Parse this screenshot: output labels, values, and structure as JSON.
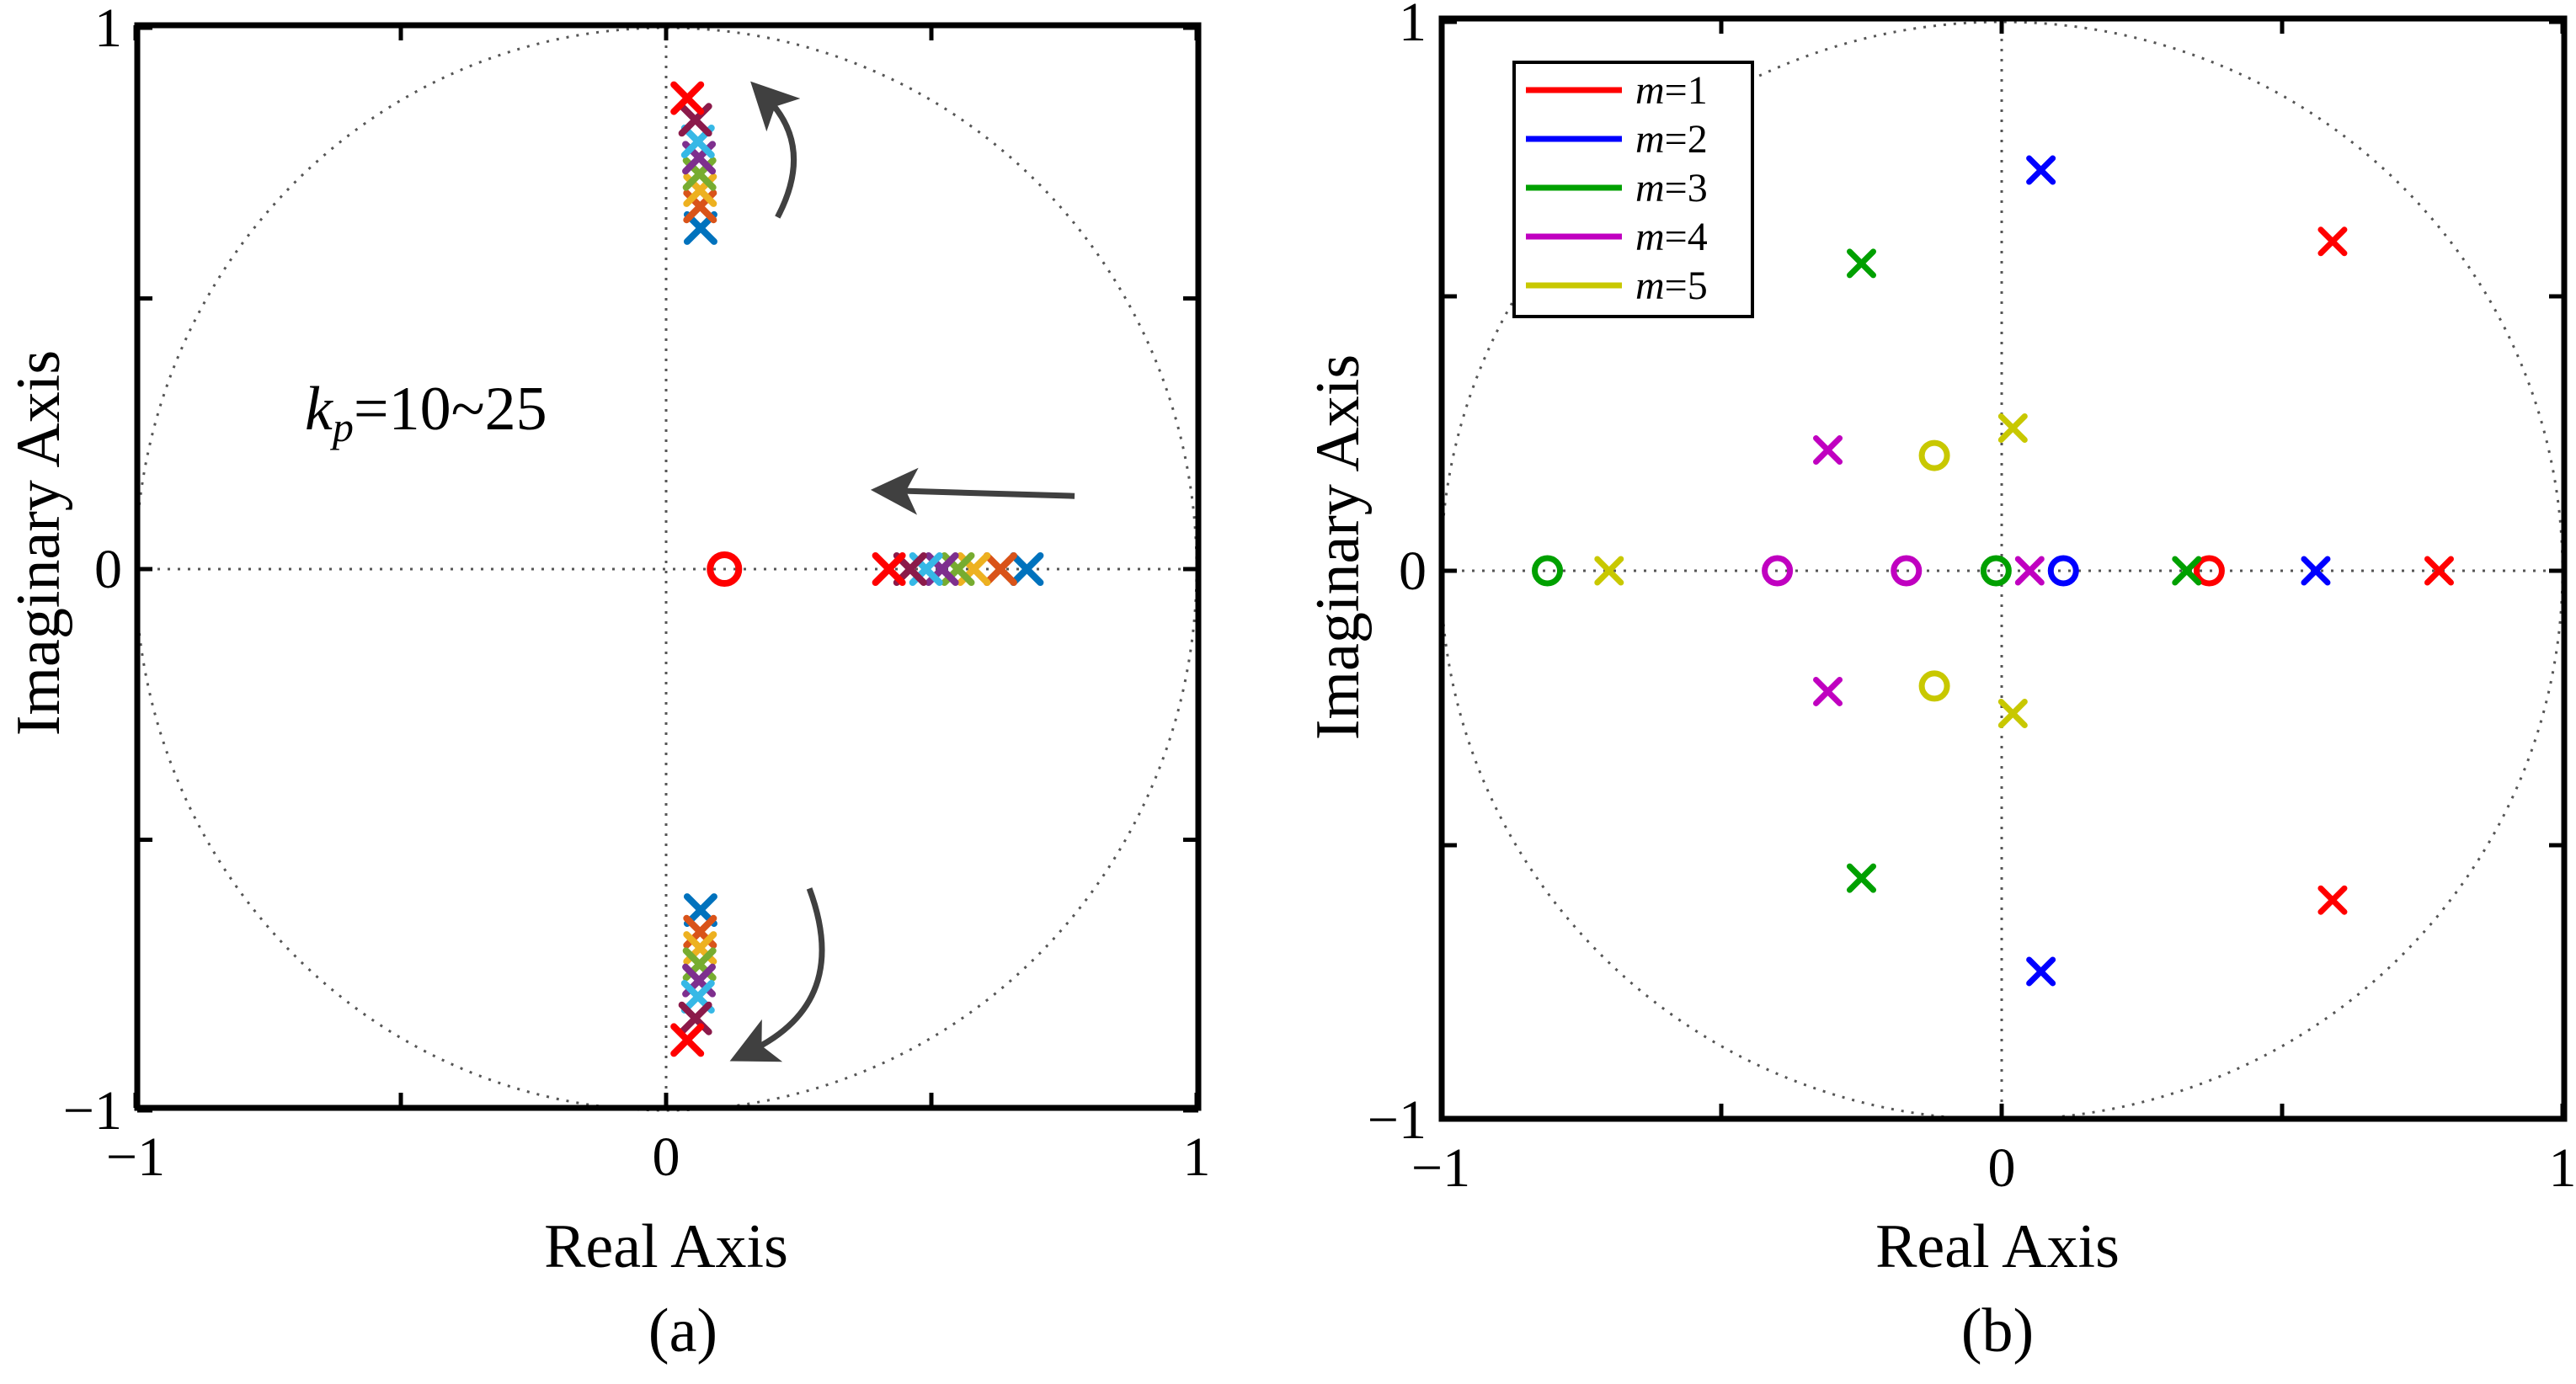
{
  "chart_data": [
    {
      "panel": "a",
      "type": "scatter",
      "caption": "(a)",
      "xlabel": "Real Axis",
      "ylabel": "Imaginary Axis",
      "xlim": [
        -1,
        1
      ],
      "ylim": [
        -1,
        1
      ],
      "xticks": [
        "−1",
        "0",
        "1"
      ],
      "yticks": [
        "−1",
        "0",
        "1"
      ],
      "unit_circle": true,
      "annotation": {
        "var": "k",
        "sub": "p",
        "rest": "=10~25"
      },
      "palette": [
        "#ff0000",
        "#8b1a4a",
        "#36b8e6",
        "#7e2f8e",
        "#77ac30",
        "#edb120",
        "#d95319",
        "#0072bd"
      ],
      "pole_sweep": {
        "real_axis_x": [
          0.42,
          0.46,
          0.49,
          0.52,
          0.55,
          0.58,
          0.63,
          0.68
        ],
        "complex_re": [
          0.04,
          0.055,
          0.06,
          0.062,
          0.063,
          0.064,
          0.064,
          0.065
        ],
        "complex_im": [
          0.87,
          0.83,
          0.79,
          0.76,
          0.73,
          0.7,
          0.67,
          0.63
        ]
      },
      "zeros": [
        {
          "re": 0.11,
          "im": 0.0,
          "color": "#ff0000"
        }
      ]
    },
    {
      "panel": "b",
      "type": "scatter",
      "caption": "(b)",
      "xlabel": "Real Axis",
      "ylabel": "Imaginary Axis",
      "xlim": [
        -1,
        1
      ],
      "ylim": [
        -1,
        1
      ],
      "xticks": [
        "−1",
        "0",
        "1"
      ],
      "yticks": [
        "−1",
        "0",
        "1"
      ],
      "unit_circle": true,
      "legend": [
        {
          "var": "m",
          "value": "=1",
          "color": "#ff0000"
        },
        {
          "var": "m",
          "value": "=2",
          "color": "#0000ff"
        },
        {
          "var": "m",
          "value": "=3",
          "color": "#00a000"
        },
        {
          "var": "m",
          "value": "=4",
          "color": "#c000c0"
        },
        {
          "var": "m",
          "value": "=5",
          "color": "#c8c800"
        }
      ],
      "series": [
        {
          "name": "m=1",
          "color": "#ff0000",
          "poles": [
            [
              0.78,
              0.0
            ],
            [
              0.59,
              0.6
            ],
            [
              0.59,
              -0.6
            ]
          ],
          "zeros": [
            [
              0.37,
              0.0
            ]
          ]
        },
        {
          "name": "m=2",
          "color": "#0000ff",
          "poles": [
            [
              0.56,
              0.0
            ],
            [
              0.07,
              0.73
            ],
            [
              0.07,
              -0.73
            ]
          ],
          "zeros": [
            [
              0.11,
              0.0
            ]
          ]
        },
        {
          "name": "m=3",
          "color": "#00a000",
          "poles": [
            [
              0.33,
              0.0
            ],
            [
              -0.25,
              0.56
            ],
            [
              -0.25,
              -0.56
            ]
          ],
          "zeros": [
            [
              -0.01,
              0.0
            ],
            [
              -0.81,
              0.0
            ]
          ]
        },
        {
          "name": "m=4",
          "color": "#c000c0",
          "poles": [
            [
              0.05,
              0.0
            ],
            [
              -0.31,
              0.22
            ],
            [
              -0.31,
              -0.22
            ]
          ],
          "zeros": [
            [
              -0.17,
              0.0
            ],
            [
              -0.4,
              0.0
            ]
          ]
        },
        {
          "name": "m=5",
          "color": "#c8c800",
          "poles": [
            [
              -0.7,
              0.0
            ],
            [
              0.02,
              0.26
            ],
            [
              0.02,
              -0.26
            ]
          ],
          "zeros": [
            [
              -0.12,
              0.21
            ],
            [
              -0.12,
              -0.21
            ]
          ]
        }
      ]
    }
  ]
}
